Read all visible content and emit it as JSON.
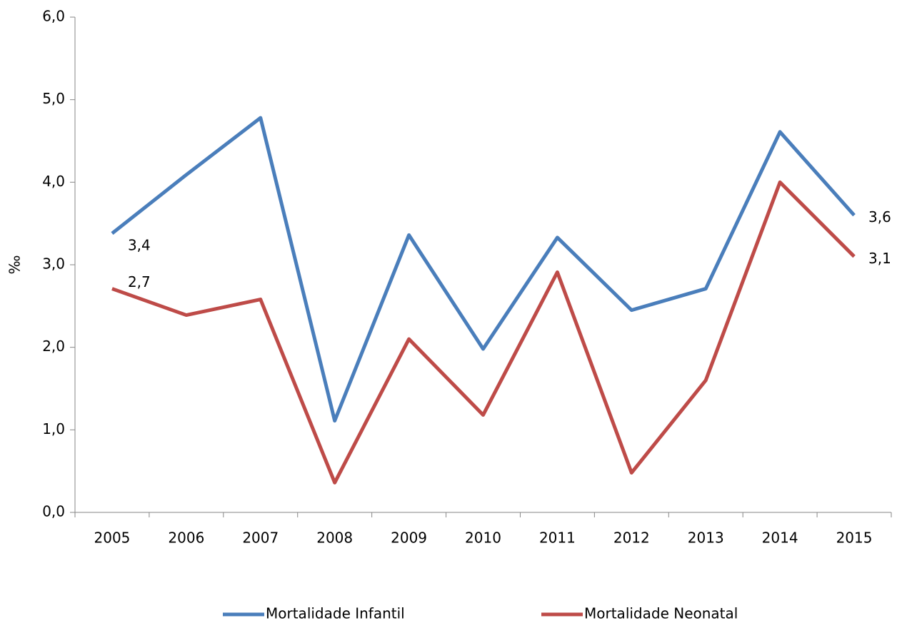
{
  "chart_data": {
    "type": "line",
    "y_label": "‰",
    "categories": [
      "2005",
      "2006",
      "2007",
      "2008",
      "2009",
      "2010",
      "2011",
      "2012",
      "2013",
      "2014",
      "2015"
    ],
    "series": [
      {
        "name": "Mortalidade Infantil",
        "color": "#4a7ebb",
        "values": [
          3.38,
          4.09,
          4.78,
          1.11,
          3.36,
          1.98,
          3.33,
          2.45,
          2.71,
          4.61,
          3.6
        ],
        "value_labels": [
          "3,4",
          null,
          null,
          null,
          null,
          null,
          null,
          null,
          null,
          null,
          "3,6"
        ]
      },
      {
        "name": "Mortalidade Neonatal",
        "color": "#be4b48",
        "values": [
          2.71,
          2.39,
          2.58,
          0.36,
          2.1,
          1.18,
          2.91,
          0.48,
          1.6,
          4.0,
          3.1
        ],
        "value_labels": [
          "2,7",
          null,
          null,
          null,
          null,
          null,
          null,
          null,
          null,
          null,
          "3,1"
        ]
      }
    ],
    "ylim": [
      0,
      6
    ],
    "yticks": [
      {
        "value": 0,
        "label": "0,0"
      },
      {
        "value": 1,
        "label": "1,0"
      },
      {
        "value": 2,
        "label": "2,0"
      },
      {
        "value": 3,
        "label": "3,0"
      },
      {
        "value": 4,
        "label": "4,0"
      },
      {
        "value": 5,
        "label": "5,0"
      },
      {
        "value": 6,
        "label": "6,0"
      }
    ],
    "grid": false,
    "legend": "bottom"
  }
}
